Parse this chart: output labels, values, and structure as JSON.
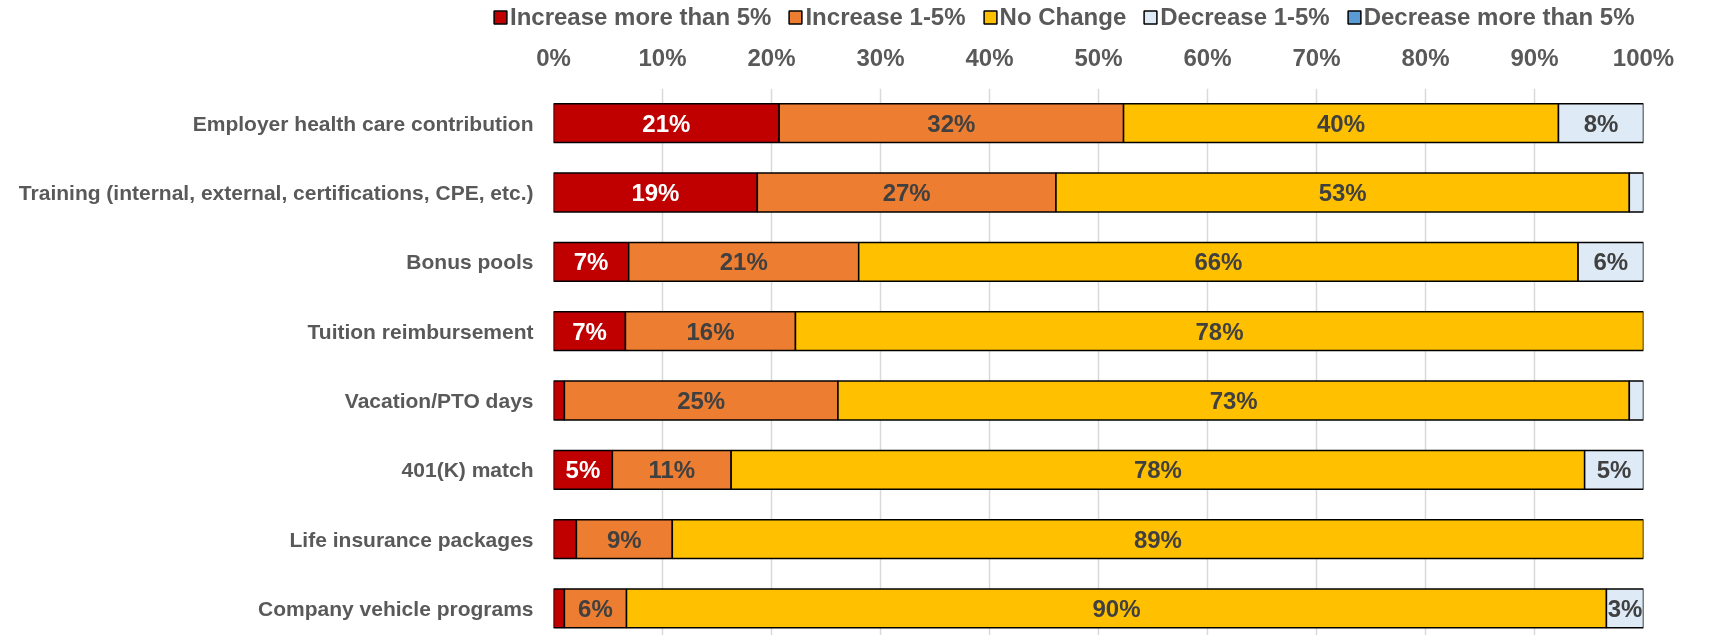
{
  "chart_data": {
    "type": "bar",
    "orientation": "horizontal",
    "stacked": true,
    "categories": [
      "Employer health care contribution",
      "Training (internal, external, certifications, CPE, etc.)",
      "Bonus pools",
      "Tuition reimbursement",
      "Vacation/PTO days",
      "401(K) match",
      "Life insurance packages",
      "Company vehicle programs"
    ],
    "series": [
      {
        "name": "Increase more than 5%",
        "color": "#c00000",
        "values": [
          20.7,
          18.7,
          6.9,
          6.6,
          1.0,
          5.4,
          2.1,
          1.0
        ],
        "value_labels": [
          "21%",
          "19%",
          "7%",
          "7%",
          null,
          "5%",
          null,
          null
        ]
      },
      {
        "name": "Increase 1-5%",
        "color": "#ed7d31",
        "values": [
          31.6,
          27.4,
          21.1,
          15.6,
          25.1,
          10.9,
          8.8,
          5.7
        ],
        "value_labels": [
          "32%",
          "27%",
          "21%",
          "16%",
          "25%",
          "11%",
          "9%",
          "6%"
        ]
      },
      {
        "name": "No Change",
        "color": "#ffc000",
        "values": [
          39.9,
          52.6,
          66.0,
          77.8,
          72.6,
          78.3,
          89.1,
          89.9
        ],
        "value_labels": [
          "40%",
          "53%",
          "66%",
          "78%",
          "73%",
          "78%",
          "89%",
          "90%"
        ]
      },
      {
        "name": "Decrease 1-5%",
        "color": "#deebf7",
        "values": [
          7.8,
          1.3,
          6.0,
          0,
          1.3,
          5.4,
          0,
          3.4
        ],
        "value_labels": [
          "8%",
          null,
          "6%",
          null,
          null,
          "5%",
          null,
          "3%"
        ]
      },
      {
        "name": "Decrease more than 5%",
        "color": "#5b9bd5",
        "values": [
          0,
          0,
          0,
          0,
          0,
          0,
          0,
          0
        ]
      }
    ],
    "xlim": [
      0,
      100
    ],
    "xticks": [
      {
        "value": 0,
        "label": "0%"
      },
      {
        "value": 10,
        "label": "10%"
      },
      {
        "value": 20,
        "label": "20%"
      },
      {
        "value": 30,
        "label": "30%"
      },
      {
        "value": 40,
        "label": "40%"
      },
      {
        "value": 50,
        "label": "50%"
      },
      {
        "value": 60,
        "label": "60%"
      },
      {
        "value": 70,
        "label": "70%"
      },
      {
        "value": 80,
        "label": "80%"
      },
      {
        "value": 90,
        "label": "90%"
      },
      {
        "value": 100,
        "label": "100%"
      }
    ],
    "grid": "x",
    "legend": "top"
  }
}
